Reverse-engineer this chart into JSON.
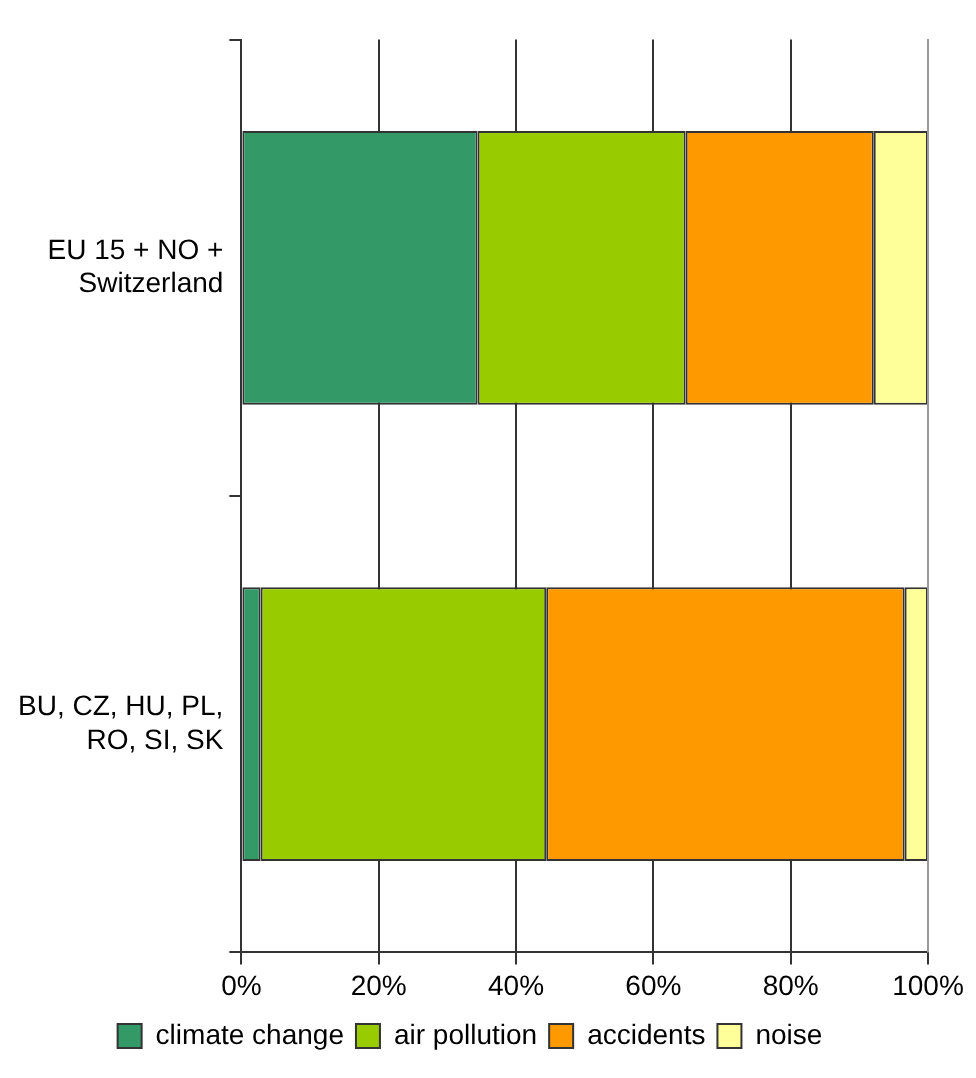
{
  "chart_data": {
    "type": "bar",
    "orientation": "horizontal",
    "stacked": true,
    "categories": [
      "EU 15 + NO + Switzerland",
      "BU, CZ, HU, PL, RO, SI, SK"
    ],
    "series": [
      {
        "name": "climate change",
        "color": "#339966",
        "values": [
          34.4,
          2.8
        ]
      },
      {
        "name": "air pollution",
        "color": "#99cc00",
        "values": [
          30.3,
          41.6
        ]
      },
      {
        "name": "accidents",
        "color": "#ff9900",
        "values": [
          27.4,
          52.2
        ]
      },
      {
        "name": "noise",
        "color": "#ffff99",
        "values": [
          7.9,
          3.4
        ]
      }
    ],
    "xlim": [
      0,
      100
    ],
    "xticks": [
      {
        "value": 0,
        "label": "0%"
      },
      {
        "value": 20,
        "label": "20%"
      },
      {
        "value": 40,
        "label": "40%"
      },
      {
        "value": 60,
        "label": "60%"
      },
      {
        "value": 80,
        "label": "80%"
      },
      {
        "value": 100,
        "label": "100%"
      }
    ],
    "grid": "x",
    "legend": "bottom"
  }
}
